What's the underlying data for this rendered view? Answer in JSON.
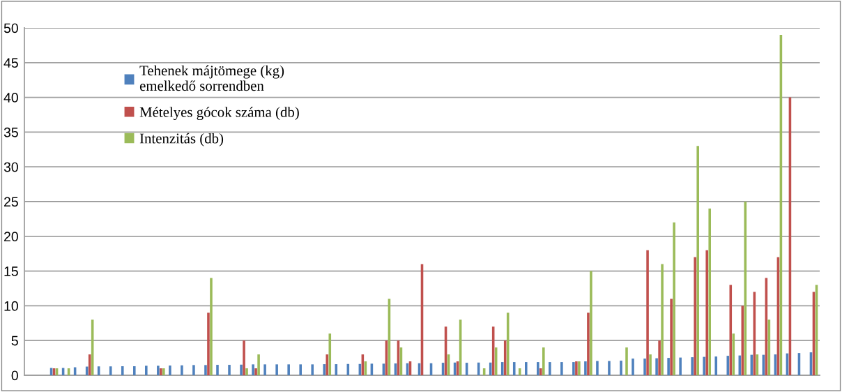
{
  "chart_data": {
    "type": "bar",
    "categories": [
      null,
      null,
      null,
      null,
      null,
      null,
      null,
      null,
      null,
      null,
      null,
      null,
      null,
      null,
      null,
      null,
      null,
      null,
      null,
      null,
      null,
      null,
      null,
      null,
      null,
      null,
      null,
      null,
      null,
      null,
      null,
      null,
      null,
      null,
      null,
      null,
      null,
      null,
      null,
      null,
      null,
      null,
      null,
      null,
      null,
      null,
      null,
      null,
      null,
      null,
      null,
      null,
      null,
      null,
      null,
      null,
      null,
      null,
      null,
      null,
      null,
      null,
      null,
      null,
      null,
      null,
      null
    ],
    "series": [
      {
        "name": "Tehenek májtömege (kg)\nemelkedő sorrendben",
        "color": "#4f81bd",
        "values": [
          null,
          null,
          1.05,
          1.05,
          1.15,
          1.25,
          1.28,
          1.28,
          1.3,
          1.3,
          1.37,
          1.37,
          1.4,
          1.43,
          1.47,
          1.47,
          1.5,
          1.5,
          1.53,
          1.57,
          1.57,
          1.57,
          1.57,
          1.57,
          1.57,
          1.6,
          1.6,
          1.63,
          1.63,
          1.67,
          1.67,
          1.7,
          1.73,
          1.73,
          1.73,
          1.8,
          1.83,
          1.8,
          1.83,
          1.83,
          1.9,
          1.9,
          1.9,
          1.9,
          1.9,
          1.9,
          1.9,
          2.0,
          2.05,
          2.05,
          2.1,
          2.4,
          2.4,
          2.45,
          2.5,
          2.55,
          2.6,
          2.65,
          2.7,
          2.8,
          2.85,
          2.95,
          2.95,
          3.0,
          3.15,
          3.2,
          3.3
        ]
      },
      {
        "name": "Mételyes gócok száma (db)",
        "color": "#c0504d",
        "values": [
          null,
          null,
          1,
          null,
          null,
          3,
          null,
          null,
          null,
          null,
          null,
          1,
          null,
          null,
          null,
          9,
          null,
          null,
          5,
          1,
          null,
          null,
          null,
          null,
          null,
          3,
          null,
          null,
          3,
          null,
          5,
          5,
          2,
          16,
          null,
          7,
          2,
          null,
          null,
          7,
          5,
          null,
          null,
          1,
          null,
          null,
          2,
          9,
          null,
          null,
          null,
          null,
          18,
          5,
          11,
          null,
          17,
          18,
          null,
          13,
          10,
          12,
          14,
          17,
          40,
          null,
          12
        ]
      },
      {
        "name": "Intenzitás (db)",
        "color": "#9bbb59",
        "values": [
          null,
          null,
          1,
          1,
          null,
          8,
          null,
          null,
          null,
          null,
          null,
          1,
          null,
          null,
          null,
          14,
          null,
          null,
          1,
          3,
          null,
          null,
          null,
          null,
          null,
          6,
          null,
          null,
          2,
          null,
          11,
          4,
          null,
          null,
          null,
          3,
          8,
          null,
          1,
          4,
          9,
          1,
          null,
          4,
          null,
          null,
          2,
          15,
          null,
          null,
          4,
          null,
          3,
          16,
          22,
          null,
          33,
          24,
          null,
          6,
          25,
          3,
          8,
          49,
          null,
          null,
          13
        ]
      }
    ],
    "ylim": [
      0,
      50
    ],
    "yticks": [
      0,
      5,
      10,
      15,
      20,
      25,
      30,
      35,
      40,
      45,
      50
    ],
    "grid": "y",
    "legend": "top left"
  }
}
